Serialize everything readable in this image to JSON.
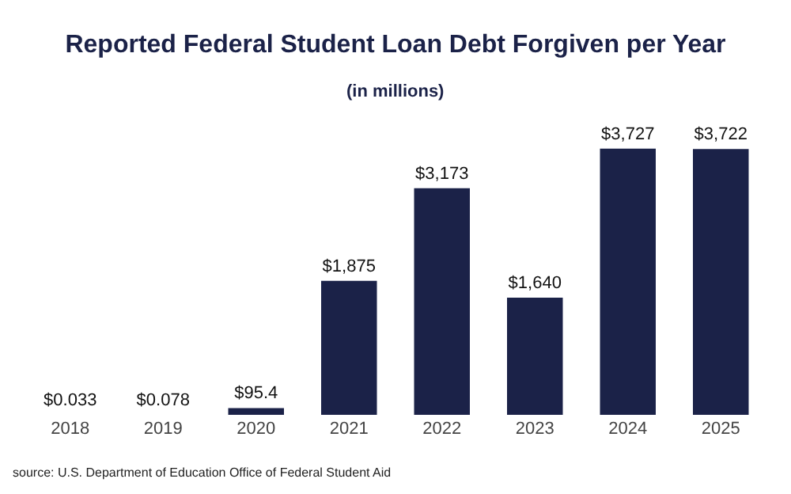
{
  "chart_data": {
    "type": "bar",
    "title": "Reported Federal Student Loan Debt Forgiven per Year",
    "subtitle": "(in millions)",
    "categories": [
      "2018",
      "2019",
      "2020",
      "2021",
      "2022",
      "2023",
      "2024",
      "2025"
    ],
    "values": [
      0.033,
      0.078,
      95.4,
      1875,
      3173,
      1640,
      3727,
      3722
    ],
    "value_labels": [
      "$0.033",
      "$0.078",
      "$95.4",
      "$1,875",
      "$3,173",
      "$1,640",
      "$3,727",
      "$3,722"
    ],
    "color": "#1b2248",
    "annotations": [
      "source: U.S. Department of Education Office of Federal Student Aid"
    ]
  }
}
